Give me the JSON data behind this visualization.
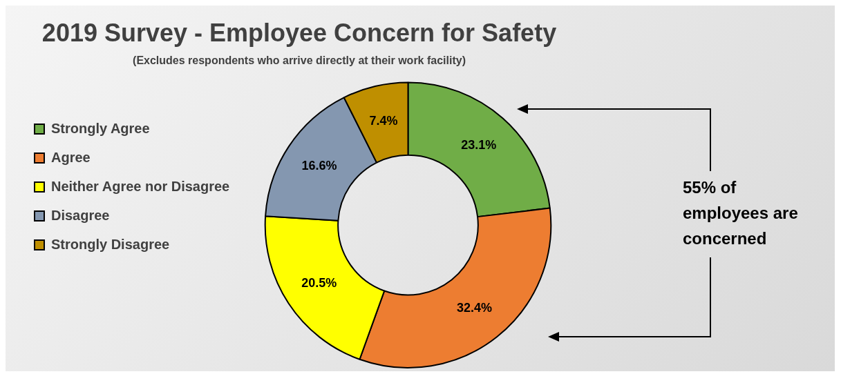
{
  "chart_data": {
    "type": "donut",
    "title": "2019 Survey - Employee Concern for Safety",
    "subtitle": "(Excludes respondents who arrive directly at their work facility)",
    "categories": [
      "Strongly Agree",
      "Agree",
      "Neither Agree nor Disagree",
      "Disagree",
      "Strongly Disagree"
    ],
    "values": [
      23.1,
      32.4,
      20.5,
      16.6,
      7.4
    ],
    "value_labels": [
      "23.1%",
      "32.4%",
      "20.5%",
      "16.6%",
      "7.4%"
    ],
    "colors": [
      "#70ad47",
      "#ed7d31",
      "#ffff00",
      "#8497b0",
      "#bf8f00"
    ],
    "legend": "left",
    "annotations": [
      "55% of employees are concerned"
    ]
  }
}
